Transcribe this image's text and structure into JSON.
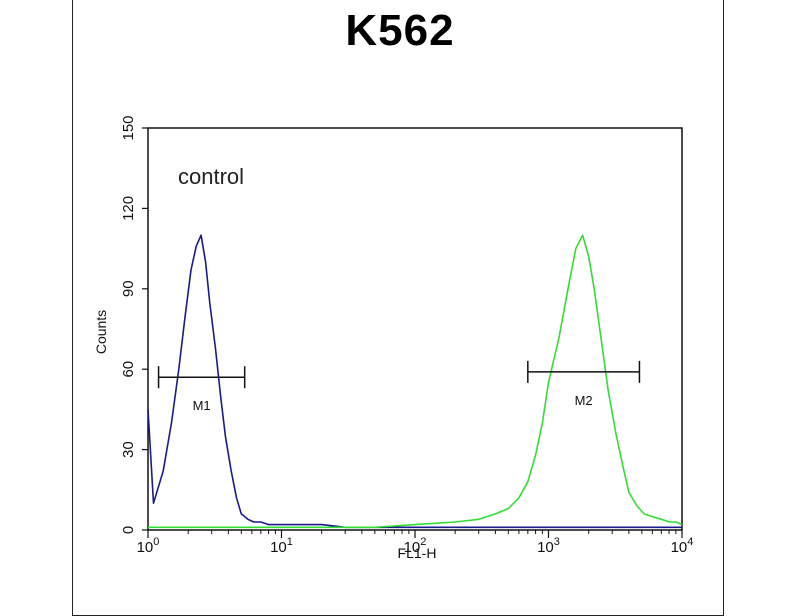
{
  "chart_data": {
    "type": "line",
    "title": "K562",
    "xlabel": "FL1-H",
    "ylabel": "Counts",
    "x_scale": "log",
    "xlim": [
      1,
      10000
    ],
    "ylim": [
      0,
      150
    ],
    "x_ticks": [
      {
        "value": 1,
        "base": "10",
        "exp": "0"
      },
      {
        "value": 10,
        "base": "10",
        "exp": "1"
      },
      {
        "value": 100,
        "base": "10",
        "exp": "2"
      },
      {
        "value": 1000,
        "base": "10",
        "exp": "3"
      },
      {
        "value": 10000,
        "base": "10",
        "exp": "4"
      }
    ],
    "y_ticks": [
      {
        "value": 0,
        "label": "0"
      },
      {
        "value": 30,
        "label": "30"
      },
      {
        "value": 60,
        "label": "60"
      },
      {
        "value": 90,
        "label": "90"
      },
      {
        "value": 120,
        "label": "120"
      },
      {
        "value": 150,
        "label": "150"
      }
    ],
    "annotation": "control",
    "grid": false,
    "series": [
      {
        "color": "#1a1a8c",
        "x": [
          1,
          1.1,
          1.3,
          1.5,
          1.7,
          1.9,
          2.1,
          2.3,
          2.5,
          2.7,
          2.9,
          3.2,
          3.5,
          3.8,
          4.2,
          4.6,
          5.0,
          5.6,
          6.2,
          7,
          8,
          10,
          15,
          20,
          30,
          50,
          100,
          200,
          500,
          1000,
          3000,
          10000
        ],
        "y": [
          45,
          10,
          22,
          40,
          60,
          80,
          97,
          106,
          110,
          100,
          85,
          68,
          50,
          35,
          22,
          12,
          6,
          4,
          3,
          3,
          2,
          2,
          2,
          2,
          1,
          1,
          1,
          1,
          1,
          1,
          1,
          1
        ]
      },
      {
        "color": "#33dd33",
        "x": [
          1,
          10,
          50,
          100,
          200,
          300,
          400,
          500,
          600,
          700,
          800,
          900,
          1000,
          1200,
          1400,
          1600,
          1800,
          2000,
          2200,
          2500,
          2800,
          3200,
          3600,
          4000,
          4600,
          5200,
          6000,
          7000,
          8000,
          9000,
          10000
        ],
        "y": [
          1,
          1,
          1,
          2,
          3,
          4,
          6,
          8,
          12,
          18,
          28,
          40,
          55,
          72,
          90,
          105,
          110,
          102,
          90,
          70,
          52,
          36,
          24,
          14,
          9,
          6,
          5,
          4,
          3,
          3,
          2
        ]
      }
    ],
    "markers": [
      {
        "label": "M1",
        "x_start": 1.2,
        "x_end": 5.3,
        "y": 57
      },
      {
        "label": "M2",
        "x_start": 700,
        "x_end": 4800,
        "y": 59
      }
    ]
  }
}
